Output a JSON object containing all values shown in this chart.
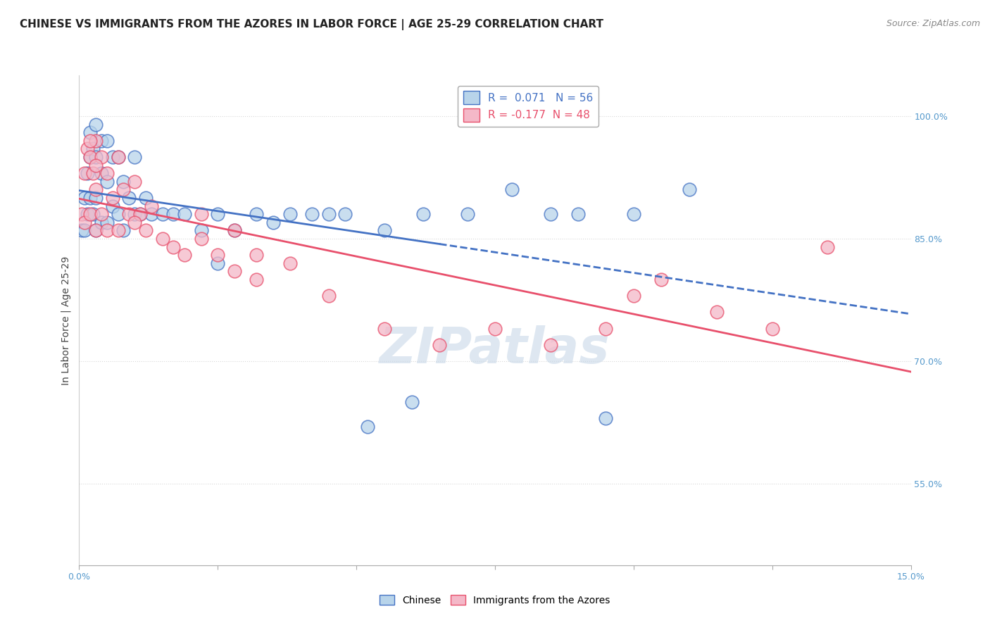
{
  "title": "CHINESE VS IMMIGRANTS FROM THE AZORES IN LABOR FORCE | AGE 25-29 CORRELATION CHART",
  "source": "Source: ZipAtlas.com",
  "ylabel": "In Labor Force | Age 25-29",
  "xlim": [
    0.0,
    0.15
  ],
  "ylim": [
    0.45,
    1.05
  ],
  "yticks": [
    0.55,
    0.7,
    0.85,
    1.0
  ],
  "yticklabels": [
    "55.0%",
    "70.0%",
    "85.0%",
    "100.0%"
  ],
  "xtick_positions": [
    0.0,
    0.025,
    0.05,
    0.075,
    0.1,
    0.125,
    0.15
  ],
  "R_chinese": 0.071,
  "N_chinese": 56,
  "R_azores": -0.177,
  "N_azores": 48,
  "chinese_face_color": "#b8d4ea",
  "chinese_edge_color": "#4472c4",
  "azores_face_color": "#f4b8c8",
  "azores_edge_color": "#e8506c",
  "chinese_line_color": "#4472c4",
  "azores_line_color": "#e8506c",
  "background_color": "#ffffff",
  "grid_color": "#d8d8d8",
  "watermark_color": "#c8d8e8",
  "chinese_x": [
    0.0005,
    0.001,
    0.001,
    0.0015,
    0.0015,
    0.002,
    0.002,
    0.002,
    0.0025,
    0.0025,
    0.003,
    0.003,
    0.003,
    0.003,
    0.004,
    0.004,
    0.004,
    0.005,
    0.005,
    0.005,
    0.006,
    0.006,
    0.007,
    0.007,
    0.008,
    0.008,
    0.009,
    0.01,
    0.01,
    0.011,
    0.012,
    0.013,
    0.015,
    0.017,
    0.019,
    0.022,
    0.025,
    0.028,
    0.032,
    0.038,
    0.042,
    0.048,
    0.055,
    0.062,
    0.07,
    0.078,
    0.085,
    0.09,
    0.1,
    0.11,
    0.025,
    0.035,
    0.045,
    0.052,
    0.06,
    0.095
  ],
  "chinese_y": [
    0.86,
    0.9,
    0.86,
    0.93,
    0.88,
    0.98,
    0.95,
    0.9,
    0.96,
    0.88,
    0.99,
    0.95,
    0.9,
    0.86,
    0.97,
    0.93,
    0.87,
    0.97,
    0.92,
    0.87,
    0.95,
    0.89,
    0.95,
    0.88,
    0.92,
    0.86,
    0.9,
    0.95,
    0.88,
    0.88,
    0.9,
    0.88,
    0.88,
    0.88,
    0.88,
    0.86,
    0.88,
    0.86,
    0.88,
    0.88,
    0.88,
    0.88,
    0.86,
    0.88,
    0.88,
    0.91,
    0.88,
    0.88,
    0.88,
    0.91,
    0.82,
    0.87,
    0.88,
    0.62,
    0.65,
    0.63
  ],
  "azores_x": [
    0.0005,
    0.001,
    0.001,
    0.0015,
    0.002,
    0.002,
    0.0025,
    0.003,
    0.003,
    0.003,
    0.004,
    0.004,
    0.005,
    0.005,
    0.006,
    0.007,
    0.007,
    0.008,
    0.009,
    0.01,
    0.011,
    0.012,
    0.013,
    0.015,
    0.017,
    0.019,
    0.022,
    0.025,
    0.028,
    0.032,
    0.022,
    0.028,
    0.032,
    0.038,
    0.045,
    0.055,
    0.065,
    0.075,
    0.085,
    0.095,
    0.105,
    0.115,
    0.125,
    0.135,
    0.1,
    0.002,
    0.003,
    0.01
  ],
  "azores_y": [
    0.88,
    0.93,
    0.87,
    0.96,
    0.95,
    0.88,
    0.93,
    0.97,
    0.91,
    0.86,
    0.95,
    0.88,
    0.93,
    0.86,
    0.9,
    0.95,
    0.86,
    0.91,
    0.88,
    0.92,
    0.88,
    0.86,
    0.89,
    0.85,
    0.84,
    0.83,
    0.85,
    0.83,
    0.81,
    0.8,
    0.88,
    0.86,
    0.83,
    0.82,
    0.78,
    0.74,
    0.72,
    0.74,
    0.72,
    0.74,
    0.8,
    0.76,
    0.74,
    0.84,
    0.78,
    0.97,
    0.94,
    0.87
  ]
}
